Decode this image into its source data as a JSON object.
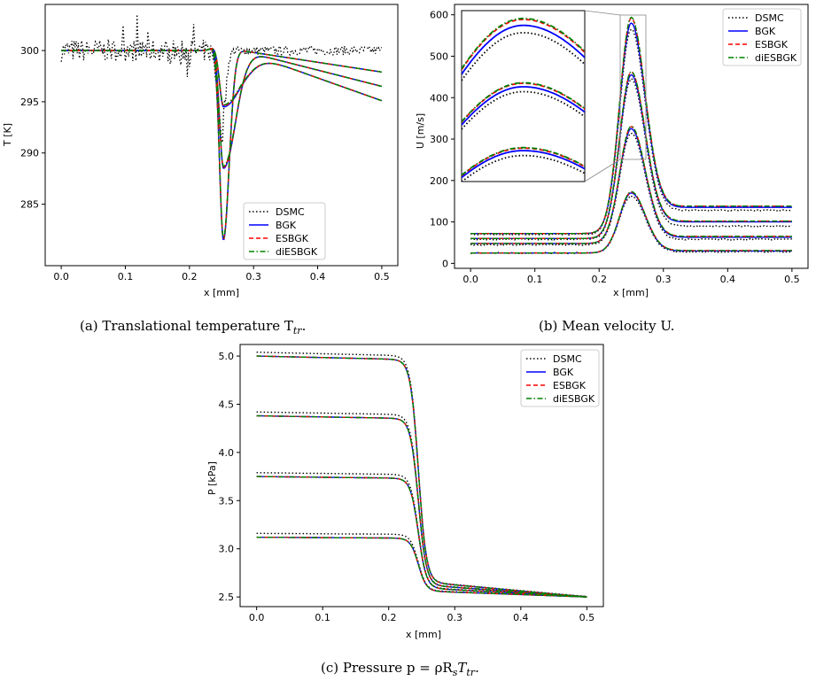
{
  "colors": {
    "DSMC": "#000000",
    "BGK": "#0000ff",
    "ESBGK": "#ff0000",
    "diESBGK": "#008000"
  },
  "chart_data": [
    {
      "id": "a",
      "type": "line",
      "xlabel": "x [mm]",
      "ylabel": "T [K]",
      "xlim": [
        -0.025,
        0.525
      ],
      "ylim": [
        279.0,
        304.5
      ],
      "xticks": [
        "0.0",
        "0.1",
        "0.2",
        "0.3",
        "0.4",
        "0.5"
      ],
      "yticks": [
        "285",
        "290",
        "295",
        "300"
      ],
      "legend": {
        "placement": "lower-right",
        "entries": [
          "DSMC",
          "BGK",
          "ESBGK",
          "diESBGK"
        ]
      },
      "caption": "(a) Translational temperature T",
      "caption_sub": "tr",
      "series": [
        {
          "name": "DSMC",
          "style": "dotted",
          "note": "noisy about 300 K; dip to about 292 K at x = 0.25 mm"
        },
        {
          "name": "BGK",
          "style": "solid",
          "dip_minimum": [
            281.5,
            288.5,
            294.5
          ]
        },
        {
          "name": "ESBGK",
          "style": "dashed",
          "dip_minimum": [
            281.6,
            288.6,
            294.6
          ]
        },
        {
          "name": "diESBGK",
          "style": "dashdot",
          "dip_minimum": [
            281.7,
            288.7,
            294.7
          ]
        }
      ]
    },
    {
      "id": "b",
      "type": "line",
      "xlabel": "x [mm]",
      "ylabel": "U [m/s]",
      "xlim": [
        -0.025,
        0.525
      ],
      "ylim": [
        -12,
        625
      ],
      "xticks": [
        "0.0",
        "0.1",
        "0.2",
        "0.3",
        "0.4",
        "0.5"
      ],
      "yticks": [
        "0",
        "100",
        "200",
        "300",
        "400",
        "500",
        "600"
      ],
      "legend": {
        "placement": "top-right",
        "entries": [
          "DSMC",
          "BGK",
          "ESBGK",
          "diESBGK"
        ]
      },
      "caption": "(b) Mean velocity U.",
      "inset": {
        "note": "zoom of peak region around x = 0.25 mm"
      },
      "series": [
        {
          "name": "DSMC",
          "style": "dotted",
          "upstream": [
            25,
            45,
            58,
            70
          ],
          "peak": [
            163,
            315,
            445,
            565
          ],
          "downstream": [
            28,
            58,
            90,
            128
          ]
        },
        {
          "name": "BGK",
          "style": "solid",
          "upstream": [
            25,
            48,
            60,
            72
          ],
          "peak": [
            170,
            325,
            455,
            580
          ],
          "downstream": [
            30,
            63,
            100,
            135
          ]
        },
        {
          "name": "ESBGK",
          "style": "dashed",
          "upstream": [
            25,
            48,
            60,
            72
          ],
          "peak": [
            172,
            330,
            462,
            592
          ],
          "downstream": [
            31,
            65,
            102,
            138
          ]
        },
        {
          "name": "diESBGK",
          "style": "dashdot",
          "upstream": [
            25,
            48,
            60,
            72
          ],
          "peak": [
            173,
            331,
            463,
            594
          ],
          "downstream": [
            31,
            65,
            102,
            138
          ]
        }
      ]
    },
    {
      "id": "c",
      "type": "line",
      "xlabel": "x [mm]",
      "ylabel": "P [kPa]",
      "xlim": [
        -0.025,
        0.525
      ],
      "ylim": [
        2.4,
        5.12
      ],
      "xticks": [
        "0.0",
        "0.1",
        "0.2",
        "0.3",
        "0.4",
        "0.5"
      ],
      "yticks": [
        "2.5",
        "3.0",
        "3.5",
        "4.0",
        "4.5",
        "5.0"
      ],
      "legend": {
        "placement": "top-right",
        "entries": [
          "DSMC",
          "BGK",
          "ESBGK",
          "diESBGK"
        ]
      },
      "caption": "(c) Pressure p = ρR",
      "caption_sub1": "s",
      "caption_mid": "T",
      "caption_sub2": "tr",
      "caption_end": ".",
      "series": [
        {
          "name": "DSMC",
          "style": "dotted",
          "upstream_start": [
            3.16,
            3.79,
            4.42,
            5.04
          ],
          "end": 2.5
        },
        {
          "name": "BGK",
          "style": "solid",
          "upstream_start": [
            3.12,
            3.75,
            4.38,
            5.0
          ],
          "end": 2.5
        },
        {
          "name": "ESBGK",
          "style": "dashed",
          "upstream_start": [
            3.12,
            3.75,
            4.38,
            5.0
          ],
          "end": 2.5
        },
        {
          "name": "diESBGK",
          "style": "dashdot",
          "upstream_start": [
            3.12,
            3.75,
            4.38,
            5.0
          ],
          "end": 2.5
        }
      ]
    }
  ]
}
